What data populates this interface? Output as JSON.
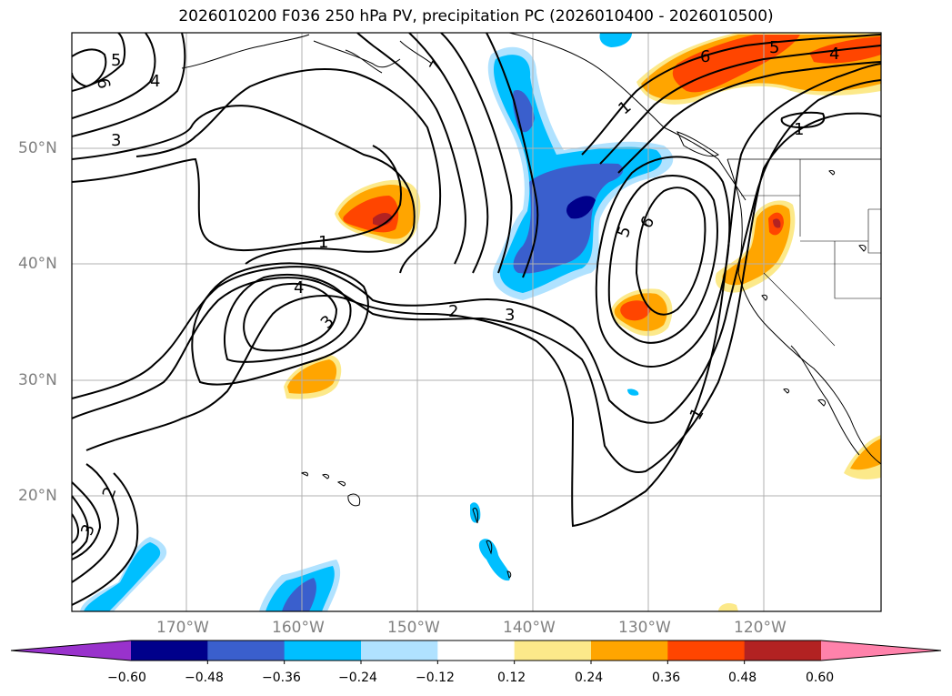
{
  "title": "2026010200 F036 250 hPa PV, precipitation PC (2026010400 - 2026010500)",
  "lat_labels": [
    "50°N",
    "40°N",
    "30°N",
    "20°N"
  ],
  "lon_labels": [
    "170°W",
    "160°W",
    "150°W",
    "140°W",
    "130°W",
    "120°W"
  ],
  "colorbar": {
    "ticks": [
      "−0.60",
      "−0.48",
      "−0.36",
      "−0.24",
      "−0.12",
      "0.12",
      "0.24",
      "0.36",
      "0.48",
      "0.60"
    ],
    "colors": [
      "#9932cc",
      "#00008b",
      "#3a5fcd",
      "#00bfff",
      "#b0e2ff",
      "#ffffff",
      "#fce98a",
      "#ffa500",
      "#ff4500",
      "#b22222",
      "#ff82ab"
    ]
  },
  "contour_labels": [
    "5",
    "6",
    "4",
    "3",
    "7",
    "6",
    "5",
    "4",
    "1",
    "1",
    "1",
    "4",
    "3",
    "2",
    "3",
    "5",
    "6",
    "1",
    "2",
    "3"
  ],
  "precip_colors": {
    "neg_light": "#b0e2ff",
    "neg_mid": "#00bfff",
    "neg_strong": "#3a5fcd",
    "neg_max": "#00008b",
    "pos_light": "#fce98a",
    "pos_mid": "#ffa500",
    "pos_strong": "#ff4500",
    "pos_max": "#b22222"
  }
}
